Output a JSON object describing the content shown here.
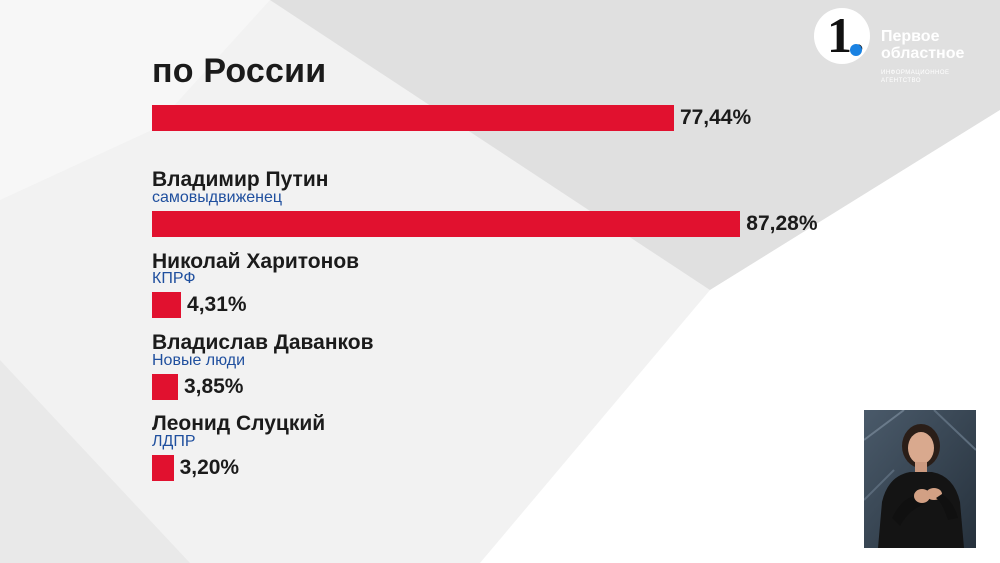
{
  "theme": {
    "accent": "#e1112f",
    "party_color": "#1f4f9e",
    "text_color": "#1b1b1b",
    "background_light": "#f2f2f2",
    "background_dark": "#e1e1e1"
  },
  "logo": {
    "digit": "1.",
    "line1": "Первое",
    "line2": "областное",
    "sub1": "ИНФОРМАЦИОННОЕ",
    "sub2": "АГЕНТСТВО"
  },
  "chart_data": {
    "type": "bar",
    "orientation": "horizontal",
    "title": "по России",
    "bars": [
      {
        "label": "",
        "party": "",
        "value": 77.44,
        "value_label": "77,44%"
      },
      {
        "label": "Владимир Путин",
        "party": "самовыдвиженец",
        "value": 87.28,
        "value_label": "87,28%"
      },
      {
        "label": "Николай Харитонов",
        "party": "КПРФ",
        "value": 4.31,
        "value_label": "4,31%"
      },
      {
        "label": "Владислав Даванков",
        "party": "Новые люди",
        "value": 3.85,
        "value_label": "3,85%"
      },
      {
        "label": "Леонид Слуцкий",
        "party": "ЛДПР",
        "value": 3.2,
        "value_label": "3,20%"
      }
    ]
  },
  "inset": {
    "icon": "sign-language-interpreter"
  }
}
